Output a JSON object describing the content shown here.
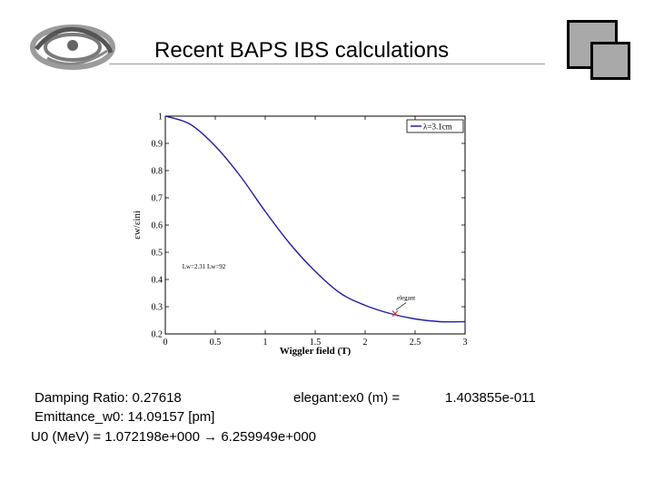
{
  "header": {
    "title": "Recent BAPS IBS calculations"
  },
  "info": {
    "damping_ratio": "Damping Ratio: 0.27618",
    "elegant_ex0_label": "elegant:ex0 (m) =",
    "elegant_ex0_value": "1.403855e-011",
    "emittance": "Emittance_w0: 14.09157 [pm]",
    "u0_prefix": "U0 (MeV) =  1.072198e+000",
    "arrow": "→",
    "u0_value": "6.259949e+000"
  },
  "chart_data": {
    "type": "line",
    "title": "",
    "xlabel": "Wiggler field (T)",
    "ylabel": "εw/εini",
    "xlim": [
      0,
      3
    ],
    "ylim": [
      0.2,
      1
    ],
    "xticks": [
      "0",
      "0.5",
      "1",
      "1.5",
      "2",
      "2.5",
      "3"
    ],
    "yticks": [
      "0.2",
      "0.3",
      "0.4",
      "0.5",
      "0.6",
      "0.7",
      "0.8",
      "0.9",
      "1"
    ],
    "legend_position": "top-right",
    "series": [
      {
        "name": "λ=3.1cm",
        "color": "#1f1fa8",
        "x": [
          0,
          0.25,
          0.5,
          0.75,
          1.0,
          1.25,
          1.5,
          1.75,
          2.0,
          2.25,
          2.5,
          2.75,
          3.0
        ],
        "y": [
          1.0,
          0.97,
          0.89,
          0.78,
          0.65,
          0.53,
          0.43,
          0.35,
          0.305,
          0.275,
          0.255,
          0.245,
          0.245
        ]
      }
    ],
    "annotations": [
      {
        "text": "Lw=2.31  Lw=92",
        "x": 0.17,
        "y": 0.44
      },
      {
        "text": "elegant",
        "x": 2.3,
        "y": 0.325
      }
    ],
    "marker": {
      "x": 2.3,
      "y": 0.275,
      "color": "#cc3333"
    }
  },
  "colors": {
    "square_fill": "#a9a9a9",
    "curve": "#1f1fa8"
  }
}
